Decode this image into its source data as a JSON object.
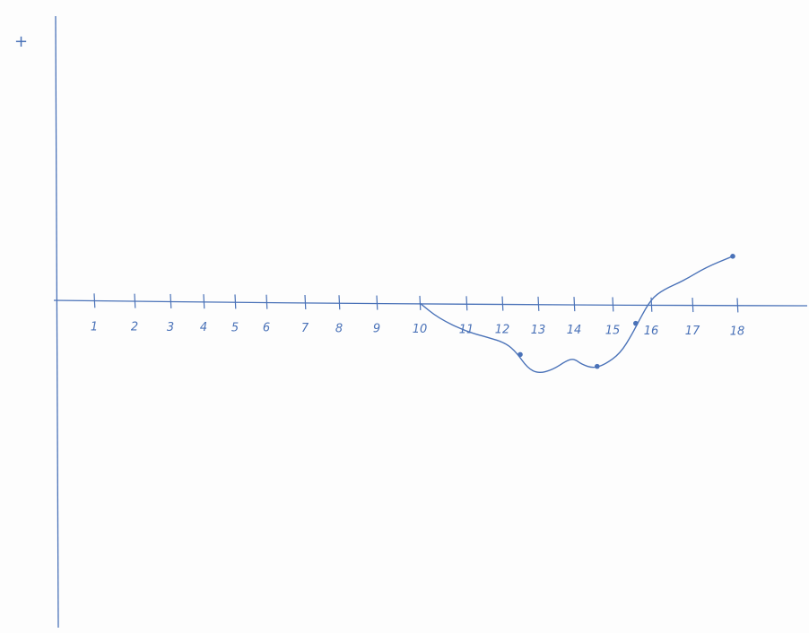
{
  "chart_data": {
    "type": "line",
    "title": "",
    "xlabel": "",
    "ylabel": "",
    "y_positive_marker": "+",
    "x_tick_labels": [
      "1",
      "2",
      "3",
      "4",
      "5",
      "6",
      "7",
      "8",
      "9",
      "10",
      "11",
      "12",
      "13",
      "14",
      "15",
      "16",
      "17",
      "18"
    ],
    "xlim": [
      0,
      20
    ],
    "ylim": [
      -13,
      10
    ],
    "grid": false,
    "color": "#4a72b8",
    "series": [
      {
        "values": [
          [
            10,
            0
          ],
          [
            10.4,
            -0.8
          ],
          [
            11,
            -1.5
          ],
          [
            11.6,
            -1.8
          ],
          [
            12.1,
            -2.1
          ],
          [
            12.4,
            -2.6
          ],
          [
            12.7,
            -3.4
          ],
          [
            13,
            -3.7
          ],
          [
            13.4,
            -3.5
          ],
          [
            13.8,
            -3.0
          ],
          [
            14.0,
            -2.9
          ],
          [
            14.2,
            -3.2
          ],
          [
            14.5,
            -3.4
          ],
          [
            14.8,
            -3.2
          ],
          [
            15.2,
            -2.6
          ],
          [
            15.5,
            -1.6
          ],
          [
            15.7,
            -0.8
          ],
          [
            16.0,
            0.3
          ],
          [
            16.3,
            0.8
          ],
          [
            16.8,
            1.3
          ],
          [
            17.3,
            2.0
          ],
          [
            17.9,
            2.6
          ]
        ],
        "markers": [
          [
            12.5,
            -2.7
          ],
          [
            14.6,
            -3.3
          ],
          [
            15.6,
            -1.0
          ],
          [
            17.9,
            2.6
          ]
        ]
      }
    ]
  }
}
